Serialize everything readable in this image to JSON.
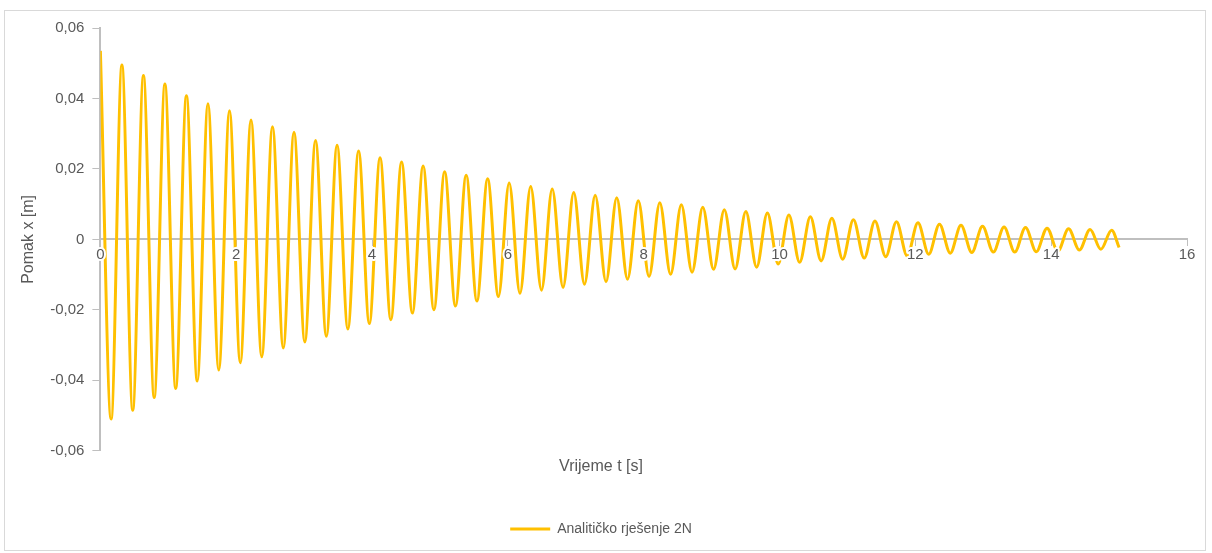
{
  "chart_data": {
    "type": "line",
    "xlabel": "Vrijeme t [s]",
    "ylabel": "Pomak x [m]",
    "xlim": [
      0,
      16
    ],
    "xticks": [
      0,
      2,
      4,
      6,
      8,
      10,
      12,
      14,
      16
    ],
    "ylim": [
      -0.06,
      0.06
    ],
    "yticks": [
      {
        "value": -0.06,
        "label": "-0,06"
      },
      {
        "value": -0.04,
        "label": "-0,04"
      },
      {
        "value": -0.02,
        "label": "-0,02"
      },
      {
        "value": 0,
        "label": "0"
      },
      {
        "value": 0.02,
        "label": "0,02"
      },
      {
        "value": 0.04,
        "label": "0,04"
      },
      {
        "value": 0.06,
        "label": "0,06"
      }
    ],
    "grid": false,
    "legend": "bottom",
    "marker": "none",
    "line_style": "solid",
    "x": [
      0,
      0.158,
      0.317,
      0.476,
      0.634,
      0.792,
      0.95,
      1.109,
      1.267,
      1.426,
      1.584,
      1.743,
      1.901,
      2.06,
      2.218,
      2.376,
      2.534,
      2.693,
      2.851,
      3.01,
      3.168,
      3.327,
      3.485,
      3.644,
      3.802,
      3.96,
      4.118,
      4.277,
      4.435,
      4.594,
      4.752,
      4.911,
      5.069,
      5.228,
      5.386,
      5.544,
      5.702,
      5.861,
      6.019,
      6.178,
      6.336,
      6.495,
      6.653,
      6.812,
      6.97,
      7.128,
      7.286,
      7.445,
      7.603,
      7.762,
      7.92,
      8.079,
      8.237,
      8.396,
      8.554,
      8.712,
      8.87,
      9.029,
      9.187,
      9.346,
      9.504,
      9.663,
      9.821,
      9.98,
      10.138,
      10.296,
      10.454,
      10.613,
      10.771,
      10.93,
      11.088,
      11.247,
      11.405,
      11.564,
      11.722,
      11.88,
      12.038,
      12.197,
      12.355,
      12.514,
      12.672,
      12.831,
      12.989,
      13.148,
      13.306,
      13.464,
      13.622,
      13.781,
      13.939,
      14.098,
      14.256,
      14.415,
      14.573,
      14.732,
      14.89,
      15.0
    ],
    "series": [
      {
        "name": "Analitičko rješenje 2N",
        "color": "#ffc000",
        "values": [
          0.0535,
          -0.051,
          0.0495,
          -0.0485,
          0.0465,
          -0.0449,
          0.0441,
          -0.0423,
          0.0408,
          -0.0402,
          0.0385,
          -0.0371,
          0.0365,
          -0.035,
          0.0339,
          -0.0333,
          0.032,
          -0.0308,
          0.0304,
          -0.0291,
          0.0281,
          -0.0275,
          0.0267,
          -0.0254,
          0.0251,
          -0.0239,
          0.0232,
          -0.0228,
          0.022,
          -0.0209,
          0.0208,
          -0.02,
          0.0192,
          -0.0189,
          0.0182,
          -0.0175,
          0.0172,
          -0.0162,
          0.016,
          -0.0153,
          0.015,
          -0.0144,
          0.0143,
          -0.0136,
          0.0133,
          -0.0127,
          0.0125,
          -0.012,
          0.0118,
          -0.0113,
          0.011,
          -0.0105,
          0.0104,
          -0.0099,
          0.0098,
          -0.0093,
          0.0091,
          -0.0085,
          0.0084,
          -0.0084,
          0.0079,
          -0.0079,
          0.0075,
          -0.007,
          0.0069,
          -0.0065,
          0.0064,
          -0.0061,
          0.006,
          -0.0056,
          0.0056,
          -0.0053,
          0.0052,
          -0.0049,
          0.005,
          -0.0047,
          0.0047,
          -0.0042,
          0.0043,
          -0.0039,
          0.004,
          -0.0037,
          0.0037,
          -0.0036,
          0.0035,
          -0.0036,
          0.0034,
          -0.0035,
          0.0032,
          -0.0033,
          0.003,
          -0.003,
          0.0028,
          -0.0028,
          0.0026,
          -0.0023
        ]
      }
    ]
  }
}
